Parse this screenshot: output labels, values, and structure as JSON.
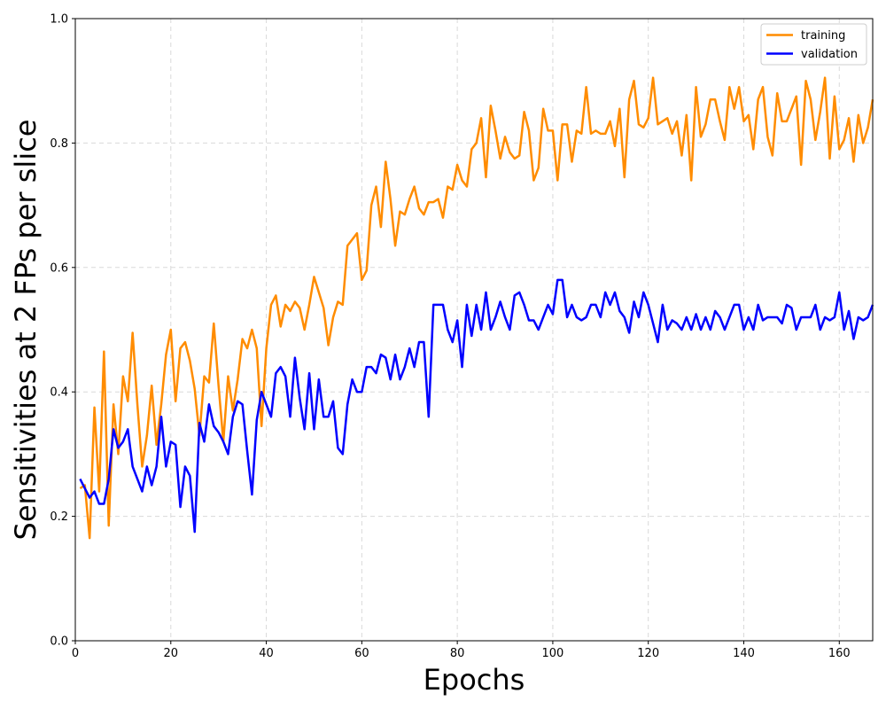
{
  "chart_data": {
    "type": "line",
    "title": "",
    "xlabel": "Epochs",
    "ylabel": "Sensitivities at 2 FPs per slice",
    "xlim": [
      0,
      167
    ],
    "ylim": [
      0.0,
      1.0
    ],
    "xticks": [
      0,
      20,
      40,
      60,
      80,
      100,
      120,
      140,
      160
    ],
    "yticks": [
      0.0,
      0.2,
      0.4,
      0.6,
      0.8,
      1.0
    ],
    "xtick_labels": [
      "0",
      "20",
      "40",
      "60",
      "80",
      "100",
      "120",
      "140",
      "160"
    ],
    "ytick_labels": [
      "0.0",
      "0.2",
      "0.4",
      "0.6",
      "0.8",
      "1.0"
    ],
    "grid": true,
    "legend_position": "top-right",
    "x": [
      1,
      2,
      3,
      4,
      5,
      6,
      7,
      8,
      9,
      10,
      11,
      12,
      13,
      14,
      15,
      16,
      17,
      18,
      19,
      20,
      21,
      22,
      23,
      24,
      25,
      26,
      27,
      28,
      29,
      30,
      31,
      32,
      33,
      34,
      35,
      36,
      37,
      38,
      39,
      40,
      41,
      42,
      43,
      44,
      45,
      46,
      47,
      48,
      49,
      50,
      51,
      52,
      53,
      54,
      55,
      56,
      57,
      58,
      59,
      60,
      61,
      62,
      63,
      64,
      65,
      66,
      67,
      68,
      69,
      70,
      71,
      72,
      73,
      74,
      75,
      76,
      77,
      78,
      79,
      80,
      81,
      82,
      83,
      84,
      85,
      86,
      87,
      88,
      89,
      90,
      91,
      92,
      93,
      94,
      95,
      96,
      97,
      98,
      99,
      100,
      101,
      102,
      103,
      104,
      105,
      106,
      107,
      108,
      109,
      110,
      111,
      112,
      113,
      114,
      115,
      116,
      117,
      118,
      119,
      120,
      121,
      122,
      123,
      124,
      125,
      126,
      127,
      128,
      129,
      130,
      131,
      132,
      133,
      134,
      135,
      136,
      137,
      138,
      139,
      140,
      141,
      142,
      143,
      144,
      145,
      146,
      147,
      148,
      149,
      150,
      151,
      152,
      153,
      154,
      155,
      156,
      157,
      158,
      159,
      160,
      161,
      162,
      163,
      164,
      165,
      166,
      167
    ],
    "series": [
      {
        "name": "training",
        "color": "#ff8c00",
        "values": [
          0.245,
          0.25,
          0.165,
          0.375,
          0.24,
          0.465,
          0.185,
          0.38,
          0.3,
          0.425,
          0.385,
          0.495,
          0.38,
          0.28,
          0.33,
          0.41,
          0.315,
          0.38,
          0.46,
          0.5,
          0.385,
          0.47,
          0.48,
          0.45,
          0.405,
          0.33,
          0.425,
          0.415,
          0.51,
          0.41,
          0.32,
          0.425,
          0.37,
          0.42,
          0.485,
          0.47,
          0.5,
          0.47,
          0.345,
          0.47,
          0.54,
          0.555,
          0.505,
          0.54,
          0.53,
          0.545,
          0.535,
          0.5,
          0.54,
          0.585,
          0.56,
          0.535,
          0.475,
          0.52,
          0.545,
          0.54,
          0.635,
          0.645,
          0.655,
          0.58,
          0.595,
          0.7,
          0.73,
          0.665,
          0.77,
          0.71,
          0.635,
          0.69,
          0.685,
          0.71,
          0.73,
          0.695,
          0.685,
          0.705,
          0.705,
          0.71,
          0.68,
          0.73,
          0.725,
          0.765,
          0.74,
          0.73,
          0.79,
          0.8,
          0.84,
          0.745,
          0.86,
          0.82,
          0.775,
          0.81,
          0.785,
          0.775,
          0.78,
          0.85,
          0.82,
          0.74,
          0.76,
          0.855,
          0.82,
          0.82,
          0.74,
          0.83,
          0.83,
          0.77,
          0.82,
          0.815,
          0.89,
          0.815,
          0.82,
          0.815,
          0.815,
          0.835,
          0.795,
          0.855,
          0.745,
          0.87,
          0.9,
          0.83,
          0.825,
          0.84,
          0.905,
          0.83,
          0.835,
          0.84,
          0.815,
          0.835,
          0.78,
          0.845,
          0.74,
          0.89,
          0.81,
          0.83,
          0.87,
          0.87,
          0.835,
          0.805,
          0.89,
          0.855,
          0.89,
          0.835,
          0.845,
          0.79,
          0.87,
          0.89,
          0.81,
          0.78,
          0.88,
          0.835,
          0.835,
          0.855,
          0.875,
          0.765,
          0.9,
          0.87,
          0.805,
          0.85,
          0.905,
          0.775,
          0.875,
          0.79,
          0.805,
          0.84,
          0.77,
          0.845,
          0.8,
          0.825,
          0.87
        ]
      },
      {
        "name": "validation",
        "color": "#0000ff",
        "values": [
          0.26,
          0.245,
          0.23,
          0.24,
          0.22,
          0.22,
          0.26,
          0.34,
          0.31,
          0.32,
          0.34,
          0.28,
          0.26,
          0.24,
          0.28,
          0.25,
          0.28,
          0.36,
          0.28,
          0.32,
          0.315,
          0.215,
          0.28,
          0.265,
          0.175,
          0.35,
          0.32,
          0.38,
          0.345,
          0.335,
          0.32,
          0.3,
          0.36,
          0.385,
          0.38,
          0.305,
          0.235,
          0.355,
          0.4,
          0.38,
          0.36,
          0.43,
          0.44,
          0.425,
          0.36,
          0.455,
          0.39,
          0.34,
          0.43,
          0.34,
          0.42,
          0.36,
          0.36,
          0.385,
          0.31,
          0.3,
          0.38,
          0.42,
          0.4,
          0.4,
          0.44,
          0.44,
          0.43,
          0.46,
          0.455,
          0.42,
          0.46,
          0.42,
          0.44,
          0.47,
          0.44,
          0.48,
          0.48,
          0.36,
          0.54,
          0.54,
          0.54,
          0.5,
          0.48,
          0.515,
          0.44,
          0.54,
          0.49,
          0.54,
          0.5,
          0.56,
          0.5,
          0.52,
          0.545,
          0.52,
          0.5,
          0.555,
          0.56,
          0.54,
          0.515,
          0.515,
          0.5,
          0.52,
          0.54,
          0.525,
          0.58,
          0.58,
          0.52,
          0.54,
          0.52,
          0.515,
          0.52,
          0.54,
          0.54,
          0.52,
          0.56,
          0.54,
          0.56,
          0.53,
          0.52,
          0.495,
          0.545,
          0.52,
          0.56,
          0.54,
          0.51,
          0.48,
          0.54,
          0.5,
          0.515,
          0.51,
          0.5,
          0.52,
          0.5,
          0.525,
          0.5,
          0.52,
          0.5,
          0.53,
          0.52,
          0.5,
          0.52,
          0.54,
          0.54,
          0.5,
          0.52,
          0.5,
          0.54,
          0.515,
          0.52,
          0.52,
          0.52,
          0.51,
          0.54,
          0.535,
          0.5,
          0.52,
          0.52,
          0.52,
          0.54,
          0.5,
          0.52,
          0.515,
          0.52,
          0.56,
          0.5,
          0.53,
          0.485,
          0.52,
          0.515,
          0.52,
          0.54
        ]
      }
    ]
  }
}
